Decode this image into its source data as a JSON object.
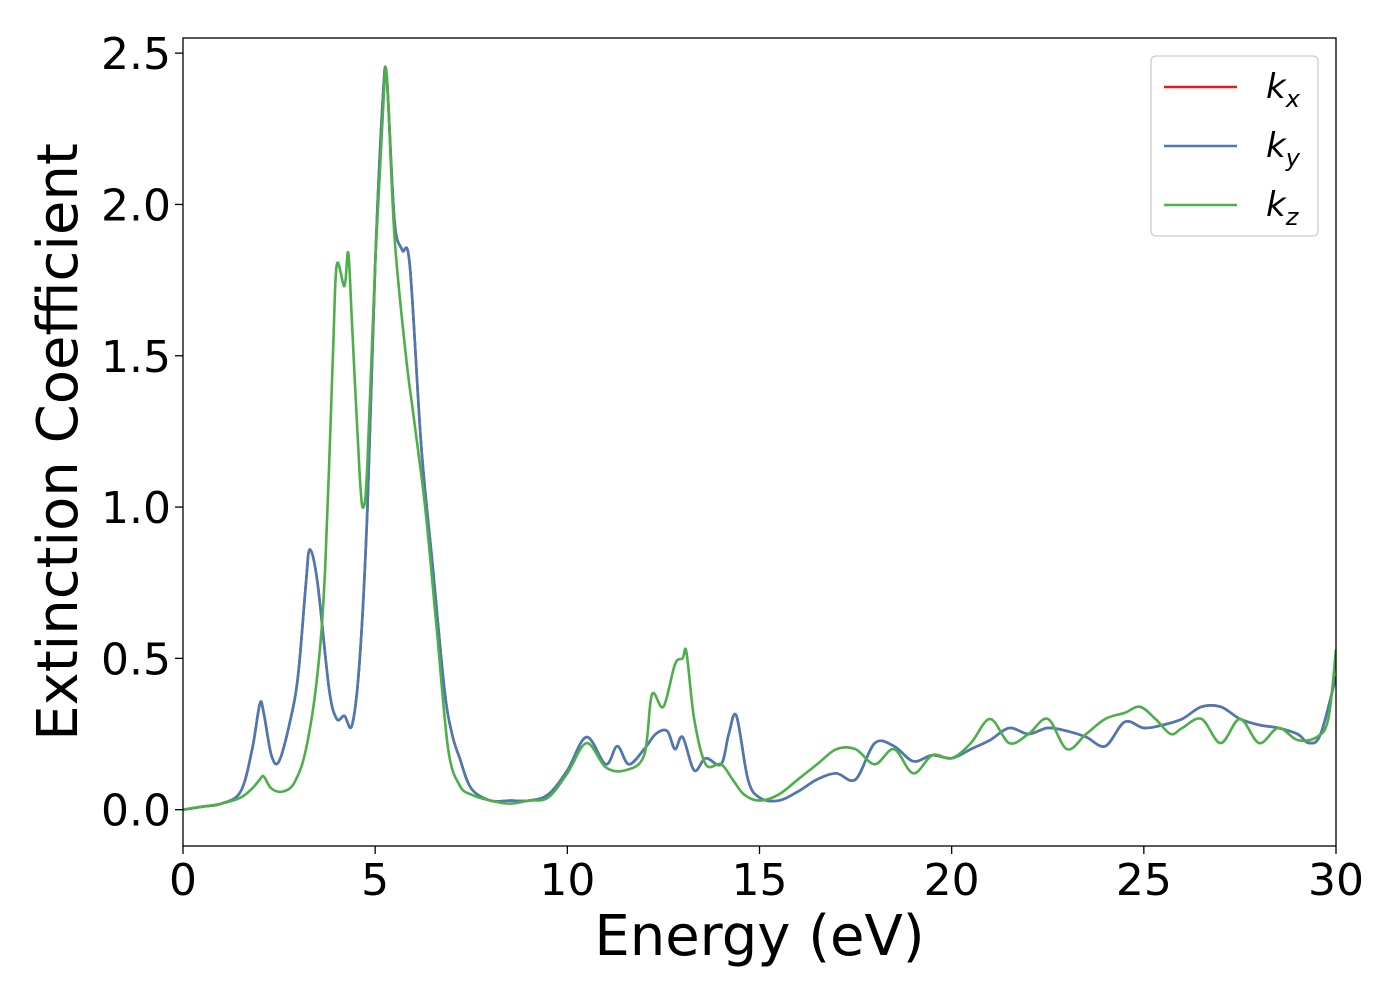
{
  "chart_data": {
    "type": "line",
    "xlabel": "Energy (eV)",
    "ylabel": "Extinction Coefficient",
    "xlim": [
      0,
      30
    ],
    "ylim": [
      -0.12,
      2.55
    ],
    "xticks": [
      0,
      5,
      10,
      15,
      20,
      25,
      30
    ],
    "xtick_labels": [
      "0",
      "5",
      "10",
      "15",
      "20",
      "25",
      "30"
    ],
    "yticks": [
      0.0,
      0.5,
      1.0,
      1.5,
      2.0,
      2.5
    ],
    "ytick_labels": [
      "0.0",
      "0.5",
      "1.0",
      "1.5",
      "2.0",
      "2.5"
    ],
    "grid": false,
    "legend_position": "top-right",
    "series": [
      {
        "name": "k_x",
        "label_main": "k",
        "label_sub": "x",
        "color": "#e41a1c",
        "x": [
          0,
          0.5,
          1.0,
          1.5,
          1.8,
          2.0,
          2.1,
          2.3,
          2.5,
          2.8,
          3.0,
          3.2,
          3.3,
          3.5,
          3.8,
          4.0,
          4.2,
          4.4,
          4.6,
          4.8,
          5.0,
          5.2,
          5.3,
          5.5,
          5.7,
          5.9,
          6.2,
          6.5,
          6.8,
          7.0,
          7.2,
          7.5,
          8.0,
          8.5,
          9.0,
          9.5,
          10.0,
          10.5,
          11.0,
          11.3,
          11.6,
          12.0,
          12.3,
          12.6,
          12.8,
          13.0,
          13.3,
          13.6,
          14.0,
          14.2,
          14.4,
          14.7,
          15.0,
          15.5,
          16.0,
          16.5,
          17.0,
          17.5,
          18.0,
          18.5,
          19.0,
          19.5,
          20.0,
          20.5,
          21.0,
          21.5,
          22.0,
          22.5,
          23.0,
          23.5,
          24.0,
          24.5,
          25.0,
          25.5,
          26.0,
          26.5,
          27.0,
          27.5,
          28.0,
          28.5,
          29.0,
          29.3,
          29.6,
          30.0
        ],
        "values": [
          0.0,
          0.01,
          0.02,
          0.06,
          0.2,
          0.35,
          0.32,
          0.18,
          0.16,
          0.3,
          0.45,
          0.75,
          0.86,
          0.75,
          0.4,
          0.3,
          0.31,
          0.28,
          0.5,
          1.0,
          1.8,
          2.35,
          2.42,
          1.95,
          1.85,
          1.8,
          1.2,
          0.8,
          0.4,
          0.25,
          0.17,
          0.07,
          0.03,
          0.03,
          0.03,
          0.05,
          0.13,
          0.24,
          0.15,
          0.21,
          0.15,
          0.2,
          0.25,
          0.26,
          0.2,
          0.24,
          0.13,
          0.17,
          0.15,
          0.25,
          0.31,
          0.1,
          0.04,
          0.03,
          0.06,
          0.1,
          0.12,
          0.1,
          0.22,
          0.21,
          0.16,
          0.18,
          0.17,
          0.2,
          0.23,
          0.27,
          0.25,
          0.27,
          0.26,
          0.24,
          0.21,
          0.29,
          0.27,
          0.28,
          0.3,
          0.34,
          0.34,
          0.3,
          0.28,
          0.27,
          0.25,
          0.22,
          0.25,
          0.44
        ]
      },
      {
        "name": "k_y",
        "label_main": "k",
        "label_sub": "y",
        "color": "#4a7ab5",
        "x": [
          0,
          0.5,
          1.0,
          1.5,
          1.8,
          2.0,
          2.1,
          2.3,
          2.5,
          2.8,
          3.0,
          3.2,
          3.3,
          3.5,
          3.8,
          4.0,
          4.2,
          4.4,
          4.6,
          4.8,
          5.0,
          5.2,
          5.3,
          5.5,
          5.7,
          5.9,
          6.2,
          6.5,
          6.8,
          7.0,
          7.2,
          7.5,
          8.0,
          8.5,
          9.0,
          9.5,
          10.0,
          10.5,
          11.0,
          11.3,
          11.6,
          12.0,
          12.3,
          12.6,
          12.8,
          13.0,
          13.3,
          13.6,
          14.0,
          14.2,
          14.4,
          14.7,
          15.0,
          15.5,
          16.0,
          16.5,
          17.0,
          17.5,
          18.0,
          18.5,
          19.0,
          19.5,
          20.0,
          20.5,
          21.0,
          21.5,
          22.0,
          22.5,
          23.0,
          23.5,
          24.0,
          24.5,
          25.0,
          25.5,
          26.0,
          26.5,
          27.0,
          27.5,
          28.0,
          28.5,
          29.0,
          29.3,
          29.6,
          30.0
        ],
        "values": [
          0.0,
          0.01,
          0.02,
          0.06,
          0.2,
          0.35,
          0.32,
          0.18,
          0.16,
          0.3,
          0.45,
          0.75,
          0.86,
          0.75,
          0.4,
          0.3,
          0.31,
          0.28,
          0.5,
          1.0,
          1.8,
          2.35,
          2.42,
          1.95,
          1.85,
          1.8,
          1.2,
          0.8,
          0.4,
          0.25,
          0.17,
          0.07,
          0.03,
          0.03,
          0.03,
          0.05,
          0.13,
          0.24,
          0.15,
          0.21,
          0.15,
          0.2,
          0.25,
          0.26,
          0.2,
          0.24,
          0.13,
          0.17,
          0.15,
          0.25,
          0.31,
          0.1,
          0.04,
          0.03,
          0.06,
          0.1,
          0.12,
          0.1,
          0.22,
          0.21,
          0.16,
          0.18,
          0.17,
          0.2,
          0.23,
          0.27,
          0.25,
          0.27,
          0.26,
          0.24,
          0.21,
          0.29,
          0.27,
          0.28,
          0.3,
          0.34,
          0.34,
          0.3,
          0.28,
          0.27,
          0.25,
          0.22,
          0.25,
          0.44
        ]
      },
      {
        "name": "k_z",
        "label_main": "k",
        "label_sub": "z",
        "color": "#4daf4a",
        "x": [
          0,
          0.5,
          1.0,
          1.5,
          1.8,
          2.0,
          2.1,
          2.3,
          2.6,
          2.9,
          3.2,
          3.5,
          3.7,
          3.9,
          4.0,
          4.2,
          4.3,
          4.4,
          4.6,
          4.7,
          4.8,
          5.0,
          5.2,
          5.3,
          5.5,
          5.8,
          6.0,
          6.3,
          6.6,
          6.9,
          7.2,
          7.5,
          8.0,
          8.5,
          9.0,
          9.5,
          10.0,
          10.5,
          11.0,
          11.5,
          12.0,
          12.2,
          12.5,
          12.8,
          13.0,
          13.1,
          13.3,
          13.6,
          14.0,
          14.3,
          14.6,
          15.0,
          15.5,
          16.0,
          16.5,
          17.0,
          17.5,
          18.0,
          18.5,
          19.0,
          19.5,
          20.0,
          20.5,
          21.0,
          21.5,
          22.0,
          22.5,
          23.0,
          23.5,
          24.0,
          24.5,
          24.9,
          25.3,
          25.7,
          26.0,
          26.5,
          27.0,
          27.5,
          28.0,
          28.5,
          29.0,
          29.5,
          29.8,
          30.0
        ],
        "values": [
          0.0,
          0.01,
          0.02,
          0.04,
          0.07,
          0.1,
          0.11,
          0.07,
          0.06,
          0.09,
          0.2,
          0.45,
          0.8,
          1.5,
          1.8,
          1.73,
          1.84,
          1.6,
          1.1,
          1.0,
          1.15,
          1.8,
          2.3,
          2.43,
          1.9,
          1.5,
          1.3,
          1.0,
          0.6,
          0.2,
          0.08,
          0.05,
          0.03,
          0.02,
          0.03,
          0.04,
          0.12,
          0.22,
          0.14,
          0.13,
          0.18,
          0.38,
          0.34,
          0.48,
          0.5,
          0.52,
          0.3,
          0.15,
          0.15,
          0.1,
          0.05,
          0.03,
          0.05,
          0.1,
          0.15,
          0.2,
          0.2,
          0.15,
          0.2,
          0.12,
          0.18,
          0.17,
          0.22,
          0.3,
          0.22,
          0.25,
          0.3,
          0.2,
          0.25,
          0.3,
          0.32,
          0.34,
          0.3,
          0.25,
          0.27,
          0.3,
          0.22,
          0.3,
          0.22,
          0.27,
          0.23,
          0.24,
          0.3,
          0.53
        ]
      }
    ]
  }
}
